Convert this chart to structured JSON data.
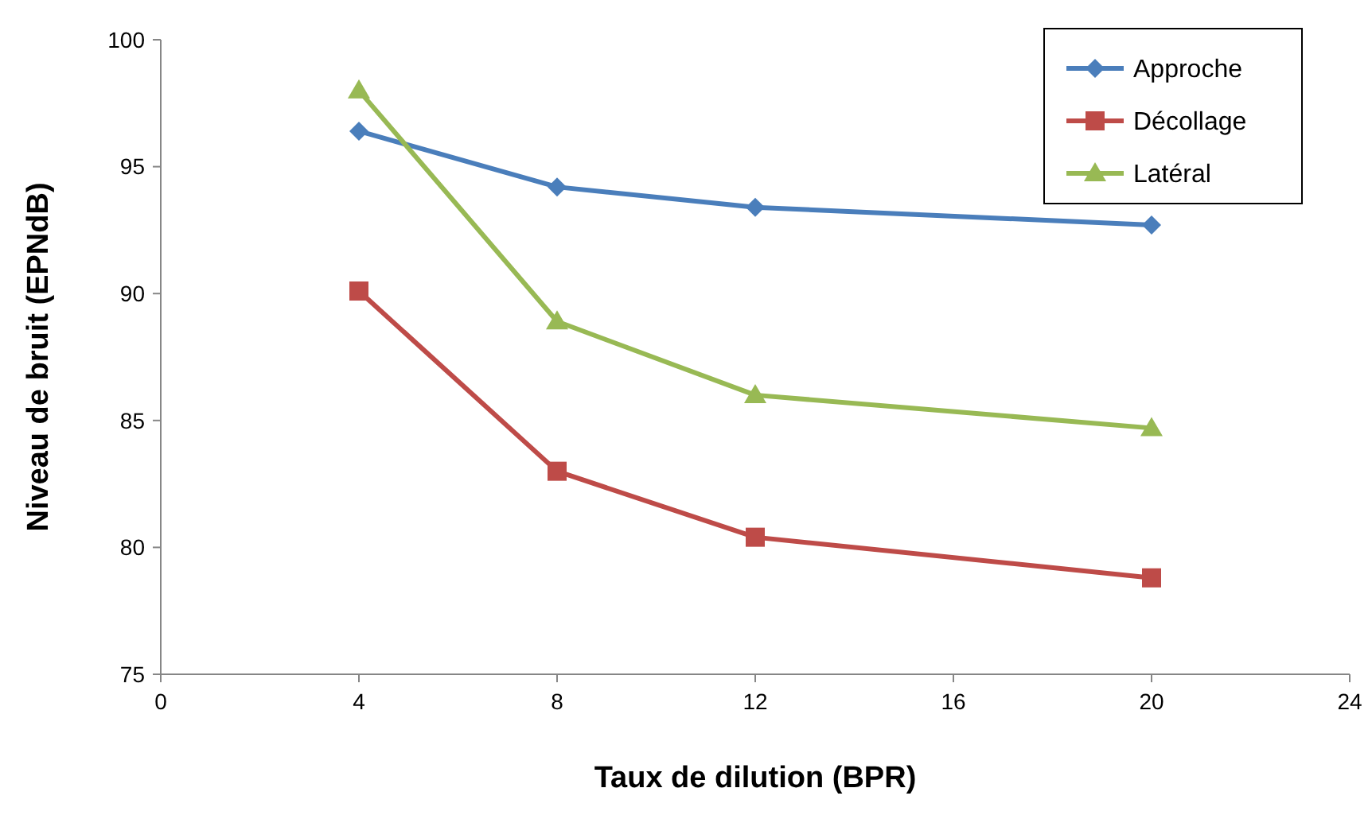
{
  "chart_data": {
    "type": "line",
    "xlabel": "Taux de dilution (BPR)",
    "ylabel": "Niveau de bruit (EPNdB)",
    "x": [
      4,
      8,
      12,
      20
    ],
    "series": [
      {
        "name": "Approche",
        "color": "#4a7ebb",
        "marker": "diamond",
        "values": [
          96.4,
          94.2,
          93.4,
          92.7
        ]
      },
      {
        "name": "Décollage",
        "color": "#be4b48",
        "marker": "square",
        "values": [
          90.1,
          83.0,
          80.4,
          78.8
        ]
      },
      {
        "name": "Latéral",
        "color": "#98b954",
        "marker": "triangle",
        "values": [
          98.0,
          88.9,
          86.0,
          84.7
        ]
      }
    ],
    "xlim": [
      0,
      24
    ],
    "xticks": [
      0,
      4,
      8,
      12,
      16,
      20,
      24
    ],
    "ylim": [
      75,
      100
    ],
    "yticks": [
      75,
      80,
      85,
      90,
      95,
      100
    ],
    "grid": false,
    "legend": "top right",
    "line_style": "solid"
  }
}
